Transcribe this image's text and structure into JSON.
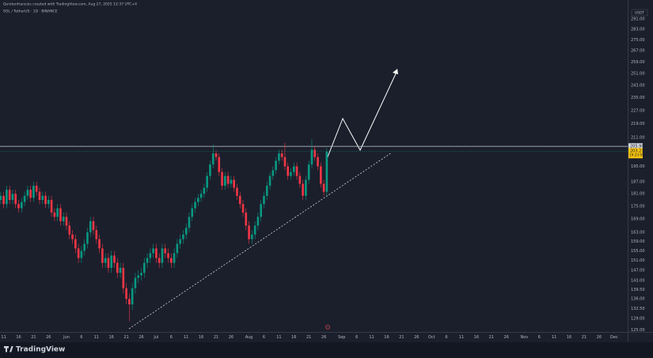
{
  "chart_data": {
    "type": "candlestick",
    "title": "SOL / TetherUS · 1D · BINANCE",
    "header": "Quintenfrancois created with TradingView.com, Aug 27, 2025 12:37 UTC+4",
    "currency": "USDT",
    "brand": "TradingView",
    "log_scale": true,
    "grid": false,
    "up_color": "#089981",
    "down_color": "#f23645",
    "ylim": [
      123,
      300
    ],
    "yticks": [
      {
        "value": 291,
        "label": "291.00"
      },
      {
        "value": 283,
        "label": "283.00"
      },
      {
        "value": 275,
        "label": "275.00"
      },
      {
        "value": 267,
        "label": "267.00"
      },
      {
        "value": 259,
        "label": "259.00"
      },
      {
        "value": 251,
        "label": "251.00"
      },
      {
        "value": 243,
        "label": "243.00"
      },
      {
        "value": 235,
        "label": "235.00"
      },
      {
        "value": 227,
        "label": "227.00"
      },
      {
        "value": 219,
        "label": "219.00"
      },
      {
        "value": 211,
        "label": "211.00"
      },
      {
        "value": 195,
        "label": "195.00"
      },
      {
        "value": 187,
        "label": "187.00"
      },
      {
        "value": 181,
        "label": "181.00"
      },
      {
        "value": 175,
        "label": "175.00"
      },
      {
        "value": 169,
        "label": "169.00"
      },
      {
        "value": 163,
        "label": "163.00"
      },
      {
        "value": 159,
        "label": "159.00"
      },
      {
        "value": 155,
        "label": "155.00"
      },
      {
        "value": 151,
        "label": "151.00"
      },
      {
        "value": 147,
        "label": "147.00"
      },
      {
        "value": 143,
        "label": "143.00"
      },
      {
        "value": 139.5,
        "label": "139.50"
      },
      {
        "value": 136,
        "label": "136.00"
      },
      {
        "value": 132.5,
        "label": "132.50"
      },
      {
        "value": 129,
        "label": "129.00"
      },
      {
        "value": 125,
        "label": "125.00"
      }
    ],
    "resistance": {
      "value": 205.9,
      "label": "205.90"
    },
    "last_price": 203.21,
    "countdown": "19:23:09",
    "xticks": [
      {
        "value": "May 11",
        "label": "11"
      },
      {
        "value": "May 16",
        "label": "16"
      },
      {
        "value": "May 21",
        "label": "21"
      },
      {
        "value": "May 26",
        "label": "26"
      },
      {
        "value": "Jun 1",
        "label": "Jun"
      },
      {
        "value": "Jun 6",
        "label": "6"
      },
      {
        "value": "Jun 11",
        "label": "11"
      },
      {
        "value": "Jun 16",
        "label": "16"
      },
      {
        "value": "Jun 21",
        "label": "21"
      },
      {
        "value": "Jun 26",
        "label": "26"
      },
      {
        "value": "Jul 1",
        "label": "Jul"
      },
      {
        "value": "Jul 6",
        "label": "6"
      },
      {
        "value": "Jul 11",
        "label": "11"
      },
      {
        "value": "Jul 16",
        "label": "16"
      },
      {
        "value": "Jul 21",
        "label": "21"
      },
      {
        "value": "Jul 26",
        "label": "26"
      },
      {
        "value": "Aug 1",
        "label": "Aug"
      },
      {
        "value": "Aug 6",
        "label": "6"
      },
      {
        "value": "Aug 11",
        "label": "11"
      },
      {
        "value": "Aug 16",
        "label": "16"
      },
      {
        "value": "Aug 21",
        "label": "21"
      },
      {
        "value": "Aug 26",
        "label": "26"
      },
      {
        "value": "Sep 1",
        "label": "Sep"
      },
      {
        "value": "Sep 6",
        "label": "6"
      },
      {
        "value": "Sep 11",
        "label": "11"
      },
      {
        "value": "Sep 16",
        "label": "16"
      },
      {
        "value": "Sep 21",
        "label": "21"
      },
      {
        "value": "Sep 26",
        "label": "26"
      },
      {
        "value": "Oct 1",
        "label": "Oct"
      },
      {
        "value": "Oct 6",
        "label": "6"
      },
      {
        "value": "Oct 11",
        "label": "11"
      },
      {
        "value": "Oct 16",
        "label": "16"
      },
      {
        "value": "Oct 21",
        "label": "21"
      },
      {
        "value": "Oct 26",
        "label": "26"
      },
      {
        "value": "Nov 1",
        "label": "Nov"
      },
      {
        "value": "Nov 6",
        "label": "6"
      },
      {
        "value": "Nov 11",
        "label": "11"
      },
      {
        "value": "Nov 16",
        "label": "16"
      },
      {
        "value": "Nov 21",
        "label": "21"
      },
      {
        "value": "Nov 26",
        "label": "26"
      },
      {
        "value": "Dec 1",
        "label": "Dec"
      }
    ],
    "x": [
      "May 10",
      "May 11",
      "May 12",
      "May 13",
      "May 14",
      "May 15",
      "May 16",
      "May 17",
      "May 18",
      "May 19",
      "May 20",
      "May 21",
      "May 22",
      "May 23",
      "May 24",
      "May 25",
      "May 26",
      "May 27",
      "May 28",
      "May 29",
      "May 30",
      "May 31",
      "Jun 1",
      "Jun 2",
      "Jun 3",
      "Jun 4",
      "Jun 5",
      "Jun 6",
      "Jun 7",
      "Jun 8",
      "Jun 9",
      "Jun 10",
      "Jun 11",
      "Jun 12",
      "Jun 13",
      "Jun 14",
      "Jun 15",
      "Jun 16",
      "Jun 17",
      "Jun 18",
      "Jun 19",
      "Jun 20",
      "Jun 21",
      "Jun 22",
      "Jun 23",
      "Jun 24",
      "Jun 25",
      "Jun 26",
      "Jun 27",
      "Jun 28",
      "Jun 29",
      "Jun 30",
      "Jul 1",
      "Jul 2",
      "Jul 3",
      "Jul 4",
      "Jul 5",
      "Jul 6",
      "Jul 7",
      "Jul 8",
      "Jul 9",
      "Jul 10",
      "Jul 11",
      "Jul 12",
      "Jul 13",
      "Jul 14",
      "Jul 15",
      "Jul 16",
      "Jul 17",
      "Jul 18",
      "Jul 19",
      "Jul 20",
      "Jul 21",
      "Jul 22",
      "Jul 23",
      "Jul 24",
      "Jul 25",
      "Jul 26",
      "Jul 27",
      "Jul 28",
      "Jul 29",
      "Jul 30",
      "Jul 31",
      "Aug 1",
      "Aug 2",
      "Aug 3",
      "Aug 4",
      "Aug 5",
      "Aug 6",
      "Aug 7",
      "Aug 8",
      "Aug 9",
      "Aug 10",
      "Aug 11",
      "Aug 12",
      "Aug 13",
      "Aug 14",
      "Aug 15",
      "Aug 16",
      "Aug 17",
      "Aug 18",
      "Aug 19",
      "Aug 20",
      "Aug 21",
      "Aug 22",
      "Aug 23",
      "Aug 24",
      "Aug 25",
      "Aug 26",
      "Aug 27"
    ],
    "open": [
      178,
      180,
      176,
      183,
      178,
      181,
      176,
      174,
      177,
      180,
      183,
      179,
      185,
      182,
      178,
      180,
      176,
      178,
      172,
      170,
      174,
      168,
      170,
      166,
      162,
      160,
      156,
      152,
      155,
      158,
      163,
      168,
      164,
      160,
      156,
      150,
      152,
      148,
      153,
      150,
      146,
      148,
      140,
      136,
      134,
      140,
      144,
      145,
      146,
      150,
      152,
      154,
      156,
      152,
      150,
      156,
      154,
      152,
      150,
      154,
      158,
      160,
      162,
      165,
      170,
      174,
      177,
      179,
      181,
      184,
      190,
      196,
      202,
      200,
      192,
      185,
      190,
      186,
      188,
      184,
      180,
      176,
      172,
      166,
      160,
      162,
      166,
      170,
      176,
      180,
      185,
      190,
      193,
      198,
      202,
      200,
      195,
      190,
      192,
      195,
      190,
      186,
      180,
      188,
      196,
      204,
      200,
      195,
      186,
      182
    ],
    "high": [
      182,
      182,
      185,
      185,
      183,
      183,
      178,
      179,
      182,
      185,
      185,
      187,
      187,
      184,
      182,
      182,
      180,
      180,
      174,
      176,
      176,
      172,
      172,
      168,
      164,
      162,
      158,
      157,
      160,
      165,
      170,
      170,
      166,
      162,
      158,
      154,
      154,
      155,
      155,
      152,
      150,
      150,
      142,
      138,
      142,
      146,
      147,
      148,
      152,
      154,
      156,
      158,
      158,
      154,
      158,
      158,
      156,
      154,
      156,
      160,
      162,
      164,
      167,
      172,
      176,
      179,
      181,
      183,
      186,
      192,
      198,
      207,
      204,
      202,
      194,
      192,
      192,
      190,
      190,
      186,
      182,
      178,
      174,
      168,
      164,
      168,
      172,
      178,
      182,
      187,
      192,
      195,
      200,
      204,
      204,
      208,
      197,
      194,
      197,
      197,
      192,
      188,
      190,
      198,
      210,
      206,
      202,
      197,
      188,
      205
    ],
    "low": [
      176,
      174,
      174,
      176,
      176,
      174,
      172,
      172,
      175,
      178,
      177,
      177,
      180,
      176,
      176,
      174,
      174,
      170,
      168,
      168,
      166,
      166,
      164,
      160,
      158,
      154,
      150,
      150,
      153,
      156,
      161,
      162,
      158,
      154,
      148,
      148,
      146,
      146,
      148,
      144,
      144,
      138,
      134,
      128,
      132,
      138,
      142,
      143,
      144,
      148,
      150,
      152,
      150,
      148,
      148,
      152,
      150,
      148,
      148,
      152,
      156,
      158,
      160,
      163,
      168,
      172,
      175,
      177,
      179,
      182,
      188,
      194,
      198,
      190,
      183,
      183,
      184,
      184,
      182,
      178,
      174,
      170,
      164,
      158,
      158,
      160,
      164,
      168,
      174,
      178,
      183,
      188,
      191,
      196,
      198,
      193,
      188,
      188,
      190,
      188,
      184,
      178,
      178,
      186,
      194,
      198,
      193,
      184,
      180,
      180
    ],
    "close": [
      180,
      176,
      183,
      178,
      181,
      176,
      174,
      177,
      180,
      183,
      179,
      185,
      182,
      178,
      180,
      176,
      178,
      172,
      170,
      174,
      168,
      170,
      166,
      162,
      160,
      156,
      152,
      155,
      158,
      163,
      168,
      164,
      160,
      156,
      150,
      152,
      148,
      153,
      150,
      146,
      148,
      140,
      136,
      134,
      140,
      144,
      145,
      146,
      150,
      152,
      154,
      156,
      152,
      150,
      156,
      154,
      152,
      150,
      154,
      158,
      160,
      162,
      165,
      170,
      174,
      177,
      179,
      181,
      184,
      190,
      196,
      202,
      200,
      192,
      185,
      190,
      186,
      188,
      184,
      180,
      176,
      172,
      166,
      160,
      162,
      166,
      170,
      176,
      180,
      185,
      190,
      193,
      198,
      202,
      200,
      195,
      190,
      192,
      195,
      190,
      186,
      180,
      188,
      196,
      204,
      200,
      195,
      186,
      182,
      203
    ]
  }
}
